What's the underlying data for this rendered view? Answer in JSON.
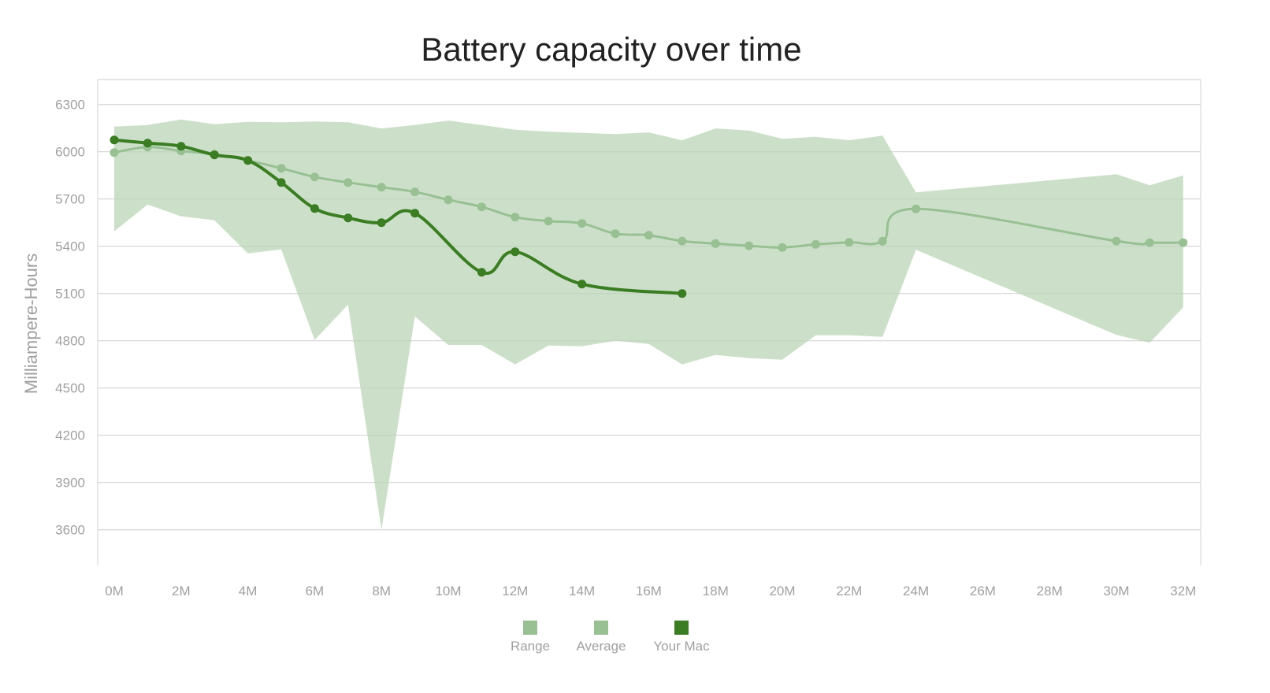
{
  "chart_data": {
    "type": "line",
    "title": "Battery capacity over time",
    "xlabel": "",
    "ylabel": "Milliampere-Hours",
    "x_unit_suffix": "M",
    "xlim": [
      0,
      32
    ],
    "ylim": [
      3375,
      6460
    ],
    "x_ticks": [
      0,
      2,
      4,
      6,
      8,
      10,
      12,
      14,
      16,
      18,
      20,
      22,
      24,
      26,
      28,
      30,
      32
    ],
    "x_tick_labels": [
      "0M",
      "2M",
      "4M",
      "6M",
      "8M",
      "10M",
      "12M",
      "14M",
      "16M",
      "18M",
      "20M",
      "22M",
      "24M",
      "26M",
      "28M",
      "30M",
      "32M"
    ],
    "y_ticks": [
      6300,
      6000,
      5700,
      5400,
      5100,
      4800,
      4500,
      4200,
      3900,
      3600
    ],
    "y_tick_labels": [
      "6300",
      "6000",
      "5700",
      "5400",
      "5100",
      "4800",
      "4500",
      "4200",
      "3900",
      "3600"
    ],
    "grid": true,
    "legend_position": "bottom-center",
    "series": [
      {
        "name": "Range",
        "kind": "area-range",
        "color": "#cce0c9",
        "legend_color": "#98c093",
        "x": [
          0,
          1,
          2,
          3,
          4,
          5,
          6,
          7,
          8,
          9,
          10,
          11,
          12,
          13,
          14,
          15,
          16,
          17,
          18,
          19,
          20,
          21,
          22,
          23,
          24,
          30,
          31,
          32
        ],
        "low": [
          5495,
          5665,
          5590,
          5565,
          5355,
          5380,
          4805,
          5030,
          3600,
          4955,
          4773,
          4773,
          4650,
          4770,
          4765,
          4800,
          4780,
          4650,
          4710,
          4690,
          4680,
          4835,
          4835,
          4825,
          5378,
          4837,
          4787,
          5012
        ],
        "high": [
          6160,
          6170,
          6205,
          6175,
          6190,
          6187,
          6192,
          6187,
          6148,
          6170,
          6198,
          6170,
          6140,
          6128,
          6120,
          6112,
          6123,
          6073,
          6148,
          6135,
          6082,
          6095,
          6073,
          6102,
          5742,
          5857,
          5787,
          5850
        ]
      },
      {
        "name": "Average",
        "kind": "line",
        "color": "#98c093",
        "x": [
          0,
          1,
          2,
          3,
          4,
          5,
          6,
          7,
          8,
          9,
          10,
          11,
          12,
          13,
          14,
          15,
          16,
          17,
          18,
          19,
          20,
          21,
          22,
          23,
          24,
          30,
          31,
          32
        ],
        "values": [
          5995,
          6030,
          6005,
          5985,
          5945,
          5895,
          5840,
          5805,
          5775,
          5745,
          5695,
          5650,
          5585,
          5560,
          5545,
          5480,
          5470,
          5433,
          5417,
          5403,
          5392,
          5412,
          5425,
          5432,
          5637,
          5433,
          5423,
          5423
        ]
      },
      {
        "name": "Your Mac",
        "kind": "line",
        "color": "#3a7d22",
        "x": [
          0,
          1,
          2,
          3,
          4,
          5,
          6,
          7,
          8,
          9,
          11,
          12,
          14,
          17
        ],
        "values": [
          6075,
          6055,
          6035,
          5980,
          5945,
          5805,
          5640,
          5580,
          5550,
          5610,
          5235,
          5365,
          5160,
          5100
        ]
      }
    ],
    "legend": [
      {
        "label": "Range",
        "color": "#98c093"
      },
      {
        "label": "Average",
        "color": "#98c093"
      },
      {
        "label": "Your Mac",
        "color": "#3a7d22"
      }
    ]
  }
}
